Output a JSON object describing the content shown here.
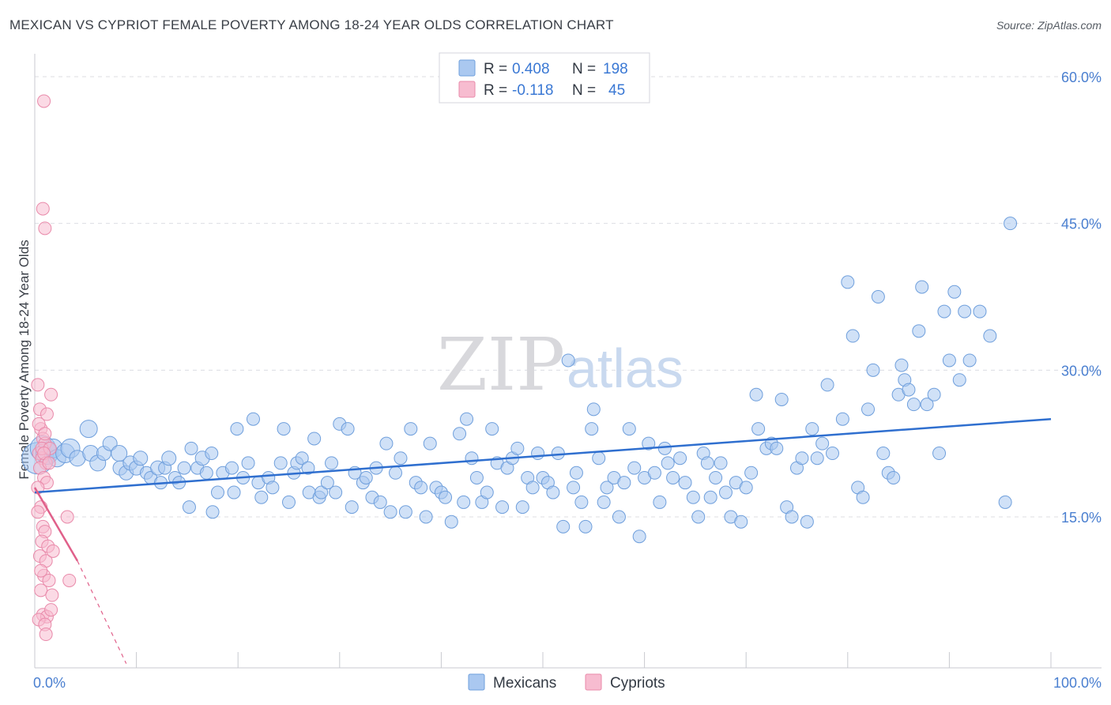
{
  "title": "MEXICAN VS CYPRIOT FEMALE POVERTY AMONG 18-24 YEAR OLDS CORRELATION CHART",
  "source": "Source: ZipAtlas.com",
  "watermark": {
    "zip": "ZIP",
    "atlas": "atlas"
  },
  "colors": {
    "mexicans_fill": "#aac8f0",
    "mexicans_stroke": "#6f9fdc",
    "mexicans_line": "#2f6fcf",
    "cypriots_fill": "#f7bcd0",
    "cypriots_stroke": "#e98aaa",
    "cypriots_line": "#e0608a",
    "grid": "#dcdde2",
    "tick_text": "#4a7fd0"
  },
  "legend": {
    "rows": [
      {
        "r_label": "R =",
        "r_value": "0.408",
        "n_label": "N =",
        "n_value": "198"
      },
      {
        "r_label": "R =",
        "r_value": "-0.118",
        "n_label": "N =",
        "n_value": "45"
      }
    ]
  },
  "bottom_legend": [
    "Mexicans",
    "Cypriots"
  ],
  "chart_data": {
    "type": "scatter",
    "title": "MEXICAN VS CYPRIOT FEMALE POVERTY AMONG 18-24 YEAR OLDS CORRELATION CHART",
    "xlabel": "",
    "ylabel": "Female Poverty Among 18-24 Year Olds",
    "xlim": [
      0,
      100
    ],
    "ylim": [
      0,
      60
    ],
    "x_tick_labels": [
      "0.0%",
      "100.0%"
    ],
    "y_ticks": [
      15,
      30,
      45,
      60
    ],
    "y_tick_labels": [
      "15.0%",
      "30.0%",
      "45.0%",
      "60.0%"
    ],
    "grid": true,
    "legend_position": "top-center",
    "series": [
      {
        "name": "Mexicans",
        "r": 0.408,
        "n": 198,
        "trend": {
          "x": [
            0,
            100
          ],
          "y": [
            17.5,
            25.0
          ]
        },
        "points": [
          [
            0.3,
            21.0,
            20
          ],
          [
            0.8,
            22.0,
            16
          ],
          [
            1.2,
            21.5,
            14
          ],
          [
            1.8,
            22.0,
            12
          ],
          [
            2.2,
            21.0,
            11
          ],
          [
            3.0,
            21.5,
            12
          ],
          [
            3.5,
            22.0,
            12
          ],
          [
            4.2,
            21.0,
            10
          ],
          [
            5.3,
            24.0,
            11
          ],
          [
            5.5,
            21.5,
            10
          ],
          [
            6.2,
            20.5,
            10
          ],
          [
            6.8,
            21.5,
            9
          ],
          [
            7.4,
            22.5,
            9
          ],
          [
            8.3,
            21.5,
            10
          ],
          [
            8.4,
            20.0,
            9
          ],
          [
            9.0,
            19.5,
            9
          ],
          [
            9.4,
            20.5,
            9
          ],
          [
            10.0,
            20.0,
            9
          ],
          [
            10.4,
            21.0,
            9
          ],
          [
            11.0,
            19.5,
            8
          ],
          [
            11.4,
            19.0,
            8
          ],
          [
            12.1,
            20.0,
            9
          ],
          [
            12.4,
            18.5,
            8
          ],
          [
            12.8,
            20.0,
            8
          ],
          [
            13.2,
            21.0,
            9
          ],
          [
            13.8,
            19.0,
            8
          ],
          [
            14.2,
            18.5,
            8
          ],
          [
            14.7,
            20.0,
            8
          ],
          [
            15.2,
            16.0,
            8
          ],
          [
            15.4,
            22.0,
            8
          ],
          [
            16.0,
            20.0,
            8
          ],
          [
            16.5,
            21.0,
            9
          ],
          [
            16.9,
            19.5,
            8
          ],
          [
            17.4,
            21.5,
            8
          ],
          [
            17.5,
            15.5,
            8
          ],
          [
            18.0,
            17.5,
            8
          ],
          [
            18.5,
            19.5,
            8
          ],
          [
            19.4,
            20.0,
            8
          ],
          [
            19.6,
            17.5,
            8
          ],
          [
            19.9,
            24.0,
            8
          ],
          [
            20.5,
            19.0,
            8
          ],
          [
            21.0,
            20.5,
            8
          ],
          [
            21.5,
            25.0,
            8
          ],
          [
            22.0,
            18.5,
            8
          ],
          [
            22.3,
            17.0,
            8
          ],
          [
            23.0,
            19.0,
            8
          ],
          [
            23.4,
            18.0,
            8
          ],
          [
            24.2,
            20.5,
            8
          ],
          [
            24.5,
            24.0,
            8
          ],
          [
            25.0,
            16.5,
            8
          ],
          [
            25.5,
            19.5,
            8
          ],
          [
            25.8,
            20.5,
            8
          ],
          [
            26.3,
            21.0,
            8
          ],
          [
            26.9,
            20.0,
            8
          ],
          [
            27.0,
            17.5,
            8
          ],
          [
            27.5,
            23.0,
            8
          ],
          [
            28.0,
            17.0,
            8
          ],
          [
            28.2,
            17.5,
            8
          ],
          [
            28.8,
            18.5,
            8
          ],
          [
            29.2,
            20.5,
            8
          ],
          [
            29.6,
            17.5,
            8
          ],
          [
            30.0,
            24.5,
            8
          ],
          [
            30.8,
            24.0,
            8
          ],
          [
            31.2,
            16.0,
            8
          ],
          [
            31.5,
            19.5,
            8
          ],
          [
            32.3,
            18.5,
            8
          ],
          [
            32.6,
            19.0,
            8
          ],
          [
            33.2,
            17.0,
            8
          ],
          [
            33.6,
            20.0,
            8
          ],
          [
            34.0,
            16.5,
            8
          ],
          [
            34.6,
            22.5,
            8
          ],
          [
            35.0,
            15.5,
            8
          ],
          [
            35.5,
            19.5,
            8
          ],
          [
            36.0,
            21.0,
            8
          ],
          [
            36.5,
            15.5,
            8
          ],
          [
            37.0,
            24.0,
            8
          ],
          [
            37.5,
            18.5,
            8
          ],
          [
            38.0,
            18.0,
            8
          ],
          [
            38.5,
            15.0,
            8
          ],
          [
            38.9,
            22.5,
            8
          ],
          [
            39.5,
            18.0,
            8
          ],
          [
            40.0,
            17.5,
            8
          ],
          [
            40.4,
            17.0,
            8
          ],
          [
            41.0,
            14.5,
            8
          ],
          [
            41.8,
            23.5,
            8
          ],
          [
            42.2,
            16.5,
            8
          ],
          [
            42.5,
            25.0,
            8
          ],
          [
            43.0,
            21.0,
            8
          ],
          [
            43.5,
            19.0,
            8
          ],
          [
            44.0,
            16.5,
            8
          ],
          [
            44.5,
            17.5,
            8
          ],
          [
            45.0,
            24.0,
            8
          ],
          [
            45.5,
            20.5,
            8
          ],
          [
            46.0,
            16.0,
            8
          ],
          [
            46.5,
            20.0,
            8
          ],
          [
            47.0,
            21.0,
            8
          ],
          [
            47.5,
            22.0,
            8
          ],
          [
            48.0,
            16.0,
            8
          ],
          [
            48.5,
            19.0,
            8
          ],
          [
            49.0,
            18.0,
            8
          ],
          [
            49.5,
            21.5,
            8
          ],
          [
            50.0,
            19.0,
            8
          ],
          [
            50.5,
            18.5,
            8
          ],
          [
            51.0,
            17.5,
            8
          ],
          [
            51.5,
            21.5,
            8
          ],
          [
            52.0,
            14.0,
            8
          ],
          [
            52.5,
            31.0,
            8
          ],
          [
            53.0,
            18.0,
            8
          ],
          [
            53.3,
            19.5,
            8
          ],
          [
            53.8,
            16.5,
            8
          ],
          [
            54.2,
            14.0,
            8
          ],
          [
            54.8,
            24.0,
            8
          ],
          [
            55.0,
            26.0,
            8
          ],
          [
            55.5,
            21.0,
            8
          ],
          [
            56.0,
            16.5,
            8
          ],
          [
            56.3,
            18.0,
            8
          ],
          [
            57.0,
            19.0,
            8
          ],
          [
            57.5,
            15.0,
            8
          ],
          [
            58.0,
            18.5,
            8
          ],
          [
            58.5,
            24.0,
            8
          ],
          [
            59.0,
            20.0,
            8
          ],
          [
            59.5,
            13.0,
            8
          ],
          [
            60.0,
            19.0,
            8
          ],
          [
            60.4,
            22.5,
            8
          ],
          [
            61.0,
            19.5,
            8
          ],
          [
            61.5,
            16.5,
            8
          ],
          [
            62.0,
            22.0,
            8
          ],
          [
            62.3,
            20.5,
            8
          ],
          [
            62.8,
            19.0,
            8
          ],
          [
            63.5,
            21.0,
            8
          ],
          [
            64.0,
            18.5,
            8
          ],
          [
            64.8,
            17.0,
            8
          ],
          [
            65.3,
            15.0,
            8
          ],
          [
            65.8,
            21.5,
            8
          ],
          [
            66.2,
            20.5,
            8
          ],
          [
            66.5,
            17.0,
            8
          ],
          [
            67.0,
            19.0,
            8
          ],
          [
            67.5,
            20.5,
            8
          ],
          [
            68.0,
            17.5,
            8
          ],
          [
            68.5,
            15.0,
            8
          ],
          [
            69.0,
            18.5,
            8
          ],
          [
            69.5,
            14.5,
            8
          ],
          [
            70.0,
            18.0,
            8
          ],
          [
            70.5,
            19.5,
            8
          ],
          [
            71.0,
            27.5,
            8
          ],
          [
            71.2,
            24.0,
            8
          ],
          [
            72.0,
            22.0,
            8
          ],
          [
            72.5,
            22.5,
            8
          ],
          [
            73.0,
            22.0,
            8
          ],
          [
            73.5,
            27.0,
            8
          ],
          [
            74.0,
            16.0,
            8
          ],
          [
            74.5,
            15.0,
            8
          ],
          [
            75.0,
            20.0,
            8
          ],
          [
            75.5,
            21.0,
            8
          ],
          [
            76.0,
            14.5,
            8
          ],
          [
            76.5,
            24.0,
            8
          ],
          [
            77.0,
            21.0,
            8
          ],
          [
            77.5,
            22.5,
            8
          ],
          [
            78.0,
            28.5,
            8
          ],
          [
            78.5,
            21.5,
            8
          ],
          [
            79.5,
            25.0,
            8
          ],
          [
            80.0,
            39.0,
            8
          ],
          [
            80.5,
            33.5,
            8
          ],
          [
            81.0,
            18.0,
            8
          ],
          [
            81.5,
            17.0,
            8
          ],
          [
            82.0,
            26.0,
            8
          ],
          [
            82.5,
            30.0,
            8
          ],
          [
            83.0,
            37.5,
            8
          ],
          [
            83.5,
            21.5,
            8
          ],
          [
            84.0,
            19.5,
            8
          ],
          [
            84.5,
            19.0,
            8
          ],
          [
            85.0,
            27.5,
            8
          ],
          [
            85.3,
            30.5,
            8
          ],
          [
            85.6,
            29.0,
            8
          ],
          [
            86.0,
            28.0,
            8
          ],
          [
            86.5,
            26.5,
            8
          ],
          [
            87.0,
            34.0,
            8
          ],
          [
            87.3,
            38.5,
            8
          ],
          [
            87.8,
            26.5,
            8
          ],
          [
            88.5,
            27.5,
            8
          ],
          [
            89.0,
            21.5,
            8
          ],
          [
            89.5,
            36.0,
            8
          ],
          [
            90.0,
            31.0,
            8
          ],
          [
            90.5,
            38.0,
            8
          ],
          [
            91.0,
            29.0,
            8
          ],
          [
            91.5,
            36.0,
            8
          ],
          [
            92.0,
            31.0,
            8
          ],
          [
            93.0,
            36.0,
            8
          ],
          [
            94.0,
            33.5,
            8
          ],
          [
            95.5,
            16.5,
            8
          ],
          [
            96.0,
            45.0,
            8
          ]
        ]
      },
      {
        "name": "Cypriots",
        "r": -0.118,
        "n": 45,
        "trend": {
          "x": [
            0,
            4.2
          ],
          "y": [
            18.0,
            10.5
          ],
          "dashed_to": [
            9.0,
            0.0
          ]
        },
        "points": [
          [
            0.3,
            28.5
          ],
          [
            0.5,
            26.0
          ],
          [
            0.6,
            24.0
          ],
          [
            0.8,
            23.0
          ],
          [
            1.0,
            22.5
          ],
          [
            0.4,
            21.5
          ],
          [
            0.7,
            21.0
          ],
          [
            1.1,
            20.5
          ],
          [
            0.5,
            20.0
          ],
          [
            0.9,
            19.0
          ],
          [
            1.2,
            18.5
          ],
          [
            0.6,
            16.0
          ],
          [
            0.3,
            15.5
          ],
          [
            0.8,
            14.0
          ],
          [
            1.0,
            13.5
          ],
          [
            0.7,
            12.5
          ],
          [
            1.3,
            12.0
          ],
          [
            0.5,
            11.0
          ],
          [
            1.1,
            10.5
          ],
          [
            0.9,
            9.0
          ],
          [
            1.4,
            8.5
          ],
          [
            0.6,
            7.5
          ],
          [
            1.7,
            7.0
          ],
          [
            0.8,
            5.0
          ],
          [
            1.2,
            4.8
          ],
          [
            0.4,
            4.5
          ],
          [
            1.0,
            4.0
          ],
          [
            1.6,
            5.5
          ],
          [
            1.1,
            3.0
          ],
          [
            0.9,
            57.5
          ],
          [
            0.8,
            46.5
          ],
          [
            1.0,
            44.5
          ],
          [
            1.6,
            27.5
          ],
          [
            1.2,
            25.5
          ],
          [
            0.7,
            22.0
          ],
          [
            1.5,
            22.0
          ],
          [
            0.9,
            21.5
          ],
          [
            0.4,
            24.5
          ],
          [
            1.0,
            23.5
          ],
          [
            1.4,
            20.5
          ],
          [
            0.3,
            18.0
          ],
          [
            3.2,
            15.0
          ],
          [
            3.4,
            8.5
          ],
          [
            1.8,
            11.5
          ],
          [
            0.6,
            9.5
          ]
        ]
      }
    ]
  }
}
